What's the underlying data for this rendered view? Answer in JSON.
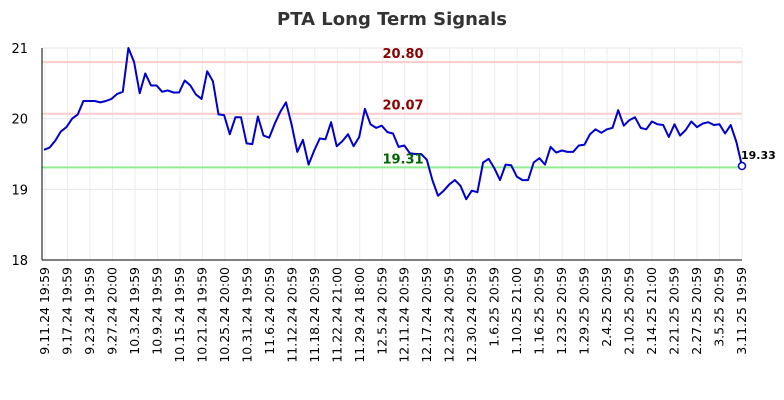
{
  "chart_data": {
    "type": "line",
    "title": "PTA Long Term Signals",
    "xlabel": "",
    "ylabel": "",
    "ylim": [
      18,
      21
    ],
    "y_ticks": [
      "18",
      "19",
      "20",
      "21"
    ],
    "grid": true,
    "x_tick_labels": [
      "9.11.24 19:59",
      "9.17.24 19:59",
      "9.23.24 19:59",
      "9.27.24 20:00",
      "10.3.24 19:59",
      "10.9.24 19:59",
      "10.15.24 19:59",
      "10.21.24 19:59",
      "10.25.24 20:00",
      "10.31.24 19:59",
      "11.6.24 20:59",
      "11.12.24 20:59",
      "11.18.24 20:59",
      "11.22.24 21:00",
      "11.29.24 18:00",
      "12.5.24 20:59",
      "12.11.24 20:59",
      "12.17.24 20:59",
      "12.23.24 20:59",
      "12.30.24 20:59",
      "1.6.25 20:59",
      "1.10.25 21:00",
      "1.16.25 20:59",
      "1.23.25 20:59",
      "1.29.25 20:59",
      "2.4.25 20:59",
      "2.10.25 20:59",
      "2.14.25 21:00",
      "2.21.25 20:59",
      "2.27.25 20:59",
      "3.5.25 20:59",
      "3.11.25 19:59"
    ],
    "series": [
      {
        "color": "#0000cc",
        "values": [
          19.56,
          19.59,
          19.69,
          19.82,
          19.88,
          20.0,
          20.06,
          20.25,
          20.25,
          20.25,
          20.23,
          20.25,
          20.28,
          20.35,
          20.38,
          21.0,
          20.8,
          20.36,
          20.64,
          20.47,
          20.47,
          20.38,
          20.4,
          20.37,
          20.37,
          20.54,
          20.47,
          20.34,
          20.28,
          20.67,
          20.53,
          20.06,
          20.05,
          19.78,
          20.02,
          20.02,
          19.65,
          19.64,
          20.03,
          19.76,
          19.73,
          19.93,
          20.1,
          20.23,
          19.91,
          19.53,
          19.7,
          19.35,
          19.55,
          19.72,
          19.71,
          19.95,
          19.61,
          19.68,
          19.78,
          19.61,
          19.74,
          20.14,
          19.92,
          19.87,
          19.9,
          19.81,
          19.79,
          19.6,
          19.62,
          19.51,
          19.5,
          19.5,
          19.42,
          19.13,
          18.91,
          18.98,
          19.07,
          19.13,
          19.05,
          18.86,
          18.98,
          18.96,
          19.38,
          19.43,
          19.3,
          19.13,
          19.35,
          19.34,
          19.18,
          19.13,
          19.13,
          19.38,
          19.44,
          19.35,
          19.6,
          19.52,
          19.55,
          19.53,
          19.53,
          19.62,
          19.63,
          19.78,
          19.85,
          19.8,
          19.85,
          19.87,
          20.12,
          19.9,
          19.98,
          20.02,
          19.87,
          19.85,
          19.96,
          19.92,
          19.91,
          19.74,
          19.92,
          19.76,
          19.84,
          19.96,
          19.88,
          19.93,
          19.95,
          19.91,
          19.92,
          19.79,
          19.91,
          19.67,
          19.33
        ]
      }
    ],
    "hlines": [
      {
        "value": 20.8,
        "label": "20.80",
        "line_color": "#ffcccc",
        "label_color": "#8b0000"
      },
      {
        "value": 20.07,
        "label": "20.07",
        "line_color": "#ffcccc",
        "label_color": "#8b0000"
      },
      {
        "value": 19.31,
        "label": "19.31",
        "line_color": "#90ee90",
        "label_color": "#006400"
      }
    ],
    "last_point": {
      "value": 19.33,
      "label": "19.33"
    }
  }
}
